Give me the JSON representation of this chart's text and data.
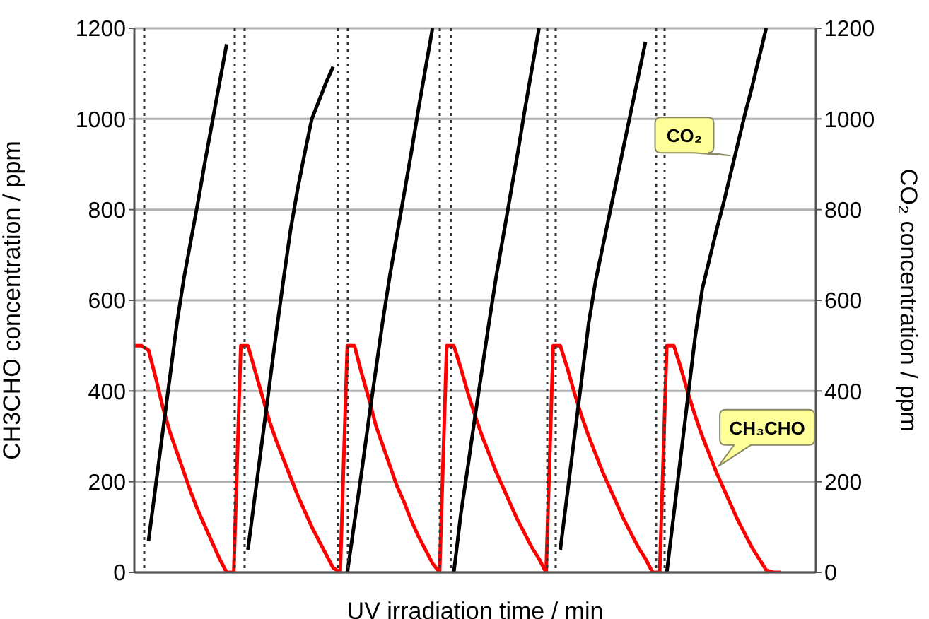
{
  "chart_data": {
    "type": "line",
    "xlabel": "UV irradiation time / min",
    "ylabel": "CH3CHO concentration /  ppm",
    "y2label": "CO₂ concentration / ppm",
    "categories": [
      null,
      null,
      null,
      null,
      null,
      null,
      null,
      null,
      null,
      null,
      null,
      null,
      null,
      null,
      null,
      null,
      null,
      null,
      null,
      null,
      null,
      null,
      null,
      null,
      null,
      null,
      null,
      null,
      null,
      null,
      null,
      null,
      null,
      null,
      null,
      null,
      null,
      null,
      null,
      null,
      null,
      null,
      null,
      null,
      null,
      null,
      null,
      null,
      null,
      null,
      null,
      null,
      null,
      null,
      null,
      null,
      null,
      null,
      null,
      null,
      null,
      null,
      null,
      null,
      null,
      null,
      null,
      null,
      null,
      null,
      null,
      null,
      null,
      null,
      null,
      null,
      null,
      null,
      null,
      null,
      null,
      null,
      null,
      null,
      null,
      null,
      null,
      null,
      null,
      null,
      null,
      null,
      null,
      null,
      null,
      null,
      null
    ],
    "ylim": [
      0,
      1200
    ],
    "yticks": [
      0,
      200,
      400,
      600,
      800,
      1000,
      1200
    ],
    "y2lim": [
      0,
      1200
    ],
    "y2ticks": [
      0,
      200,
      400,
      600,
      800,
      1000,
      1200
    ],
    "grid": "y",
    "legend": false,
    "marker": "none",
    "line_style": "solid",
    "series": [
      {
        "color": "#ff0000",
        "values": [
          500,
          500,
          490,
          430,
          365,
          310,
          265,
          220,
          175,
          135,
          100,
          65,
          30,
          0,
          0,
          500,
          500,
          445,
          390,
          335,
          290,
          250,
          210,
          170,
          135,
          100,
          70,
          40,
          10,
          0,
          500,
          500,
          440,
          385,
          325,
          280,
          235,
          190,
          155,
          115,
          80,
          50,
          20,
          0,
          500,
          500,
          450,
          395,
          345,
          300,
          260,
          220,
          185,
          150,
          115,
          85,
          55,
          30,
          0,
          500,
          500,
          450,
          395,
          345,
          300,
          260,
          220,
          185,
          150,
          115,
          85,
          55,
          30,
          0,
          0,
          500,
          500,
          450,
          395,
          345,
          300,
          260,
          220,
          185,
          150,
          115,
          85,
          55,
          30,
          5,
          0,
          0,
          null,
          null,
          null,
          null,
          null
        ]
      },
      {
        "color": "#000000",
        "values": [
          null,
          null,
          70,
          190,
          310,
          430,
          550,
          650,
          735,
          820,
          910,
          995,
          1080,
          1165,
          null,
          null,
          50,
          170,
          290,
          410,
          530,
          645,
          755,
          845,
          925,
          1000,
          1040,
          1080,
          1115,
          null,
          0,
          110,
          220,
          335,
          445,
          555,
          655,
          745,
          835,
          925,
          1020,
          1110,
          1200,
          null,
          null,
          0,
          130,
          235,
          345,
          450,
          555,
          655,
          745,
          835,
          925,
          1020,
          1110,
          1200,
          null,
          null,
          50,
          175,
          300,
          425,
          550,
          645,
          720,
          795,
          870,
          945,
          1020,
          1095,
          1170,
          null,
          null,
          0,
          130,
          260,
          390,
          520,
          625,
          690,
          755,
          815,
          880,
          945,
          1010,
          1070,
          1135,
          1200,
          null,
          null,
          null,
          null,
          null,
          null,
          null
        ]
      }
    ],
    "annotations": [
      "CO₂",
      "CH₃CHO"
    ]
  }
}
